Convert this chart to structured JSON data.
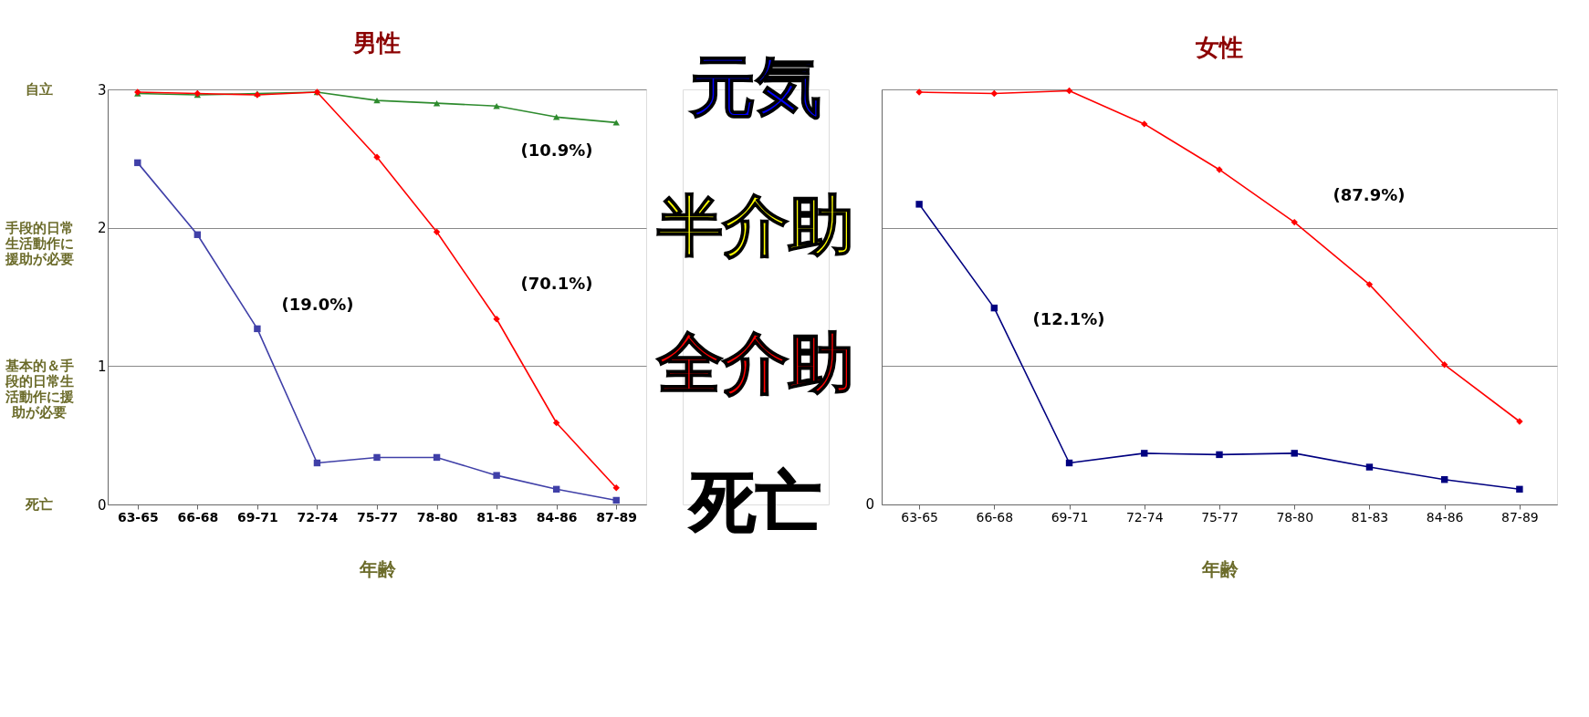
{
  "chart_data": [
    {
      "type": "line",
      "title": "男性",
      "xlabel": "年齢",
      "categories": [
        "63-65",
        "66-68",
        "69-71",
        "72-74",
        "75-77",
        "78-80",
        "81-83",
        "84-86",
        "87-89"
      ],
      "series": [
        {
          "color": "#2e8b2e",
          "marker": "triangle",
          "values": [
            2.97,
            2.96,
            2.97,
            2.98,
            2.92,
            2.9,
            2.88,
            2.8,
            2.76
          ]
        },
        {
          "color": "#ff0000",
          "marker": "diamond",
          "values": [
            2.98,
            2.97,
            2.96,
            2.98,
            2.51,
            1.97,
            1.34,
            0.59,
            0.12
          ]
        },
        {
          "color": "#4040a8",
          "marker": "square",
          "values": [
            2.47,
            1.95,
            1.27,
            0.3,
            0.34,
            0.34,
            0.21,
            0.11,
            0.03
          ]
        }
      ],
      "ylim": [
        0,
        3
      ],
      "yticks": [
        0,
        1,
        2,
        3
      ],
      "grid": "y",
      "annotations": [
        "自立",
        "手段的日常生活動作に援助が必要",
        "基本的＆手段的日常生活動作に援助が必要",
        "死亡",
        "(10.9%)",
        "(70.1%)",
        "(19.0%)"
      ]
    },
    {
      "type": "other",
      "annotations": [
        "元気",
        "半介助",
        "全介助",
        "死亡"
      ]
    },
    {
      "type": "line",
      "title": "女性",
      "xlabel": "年齢",
      "categories": [
        "63-65",
        "66-68",
        "69-71",
        "72-74",
        "75-77",
        "78-80",
        "81-83",
        "84-86",
        "87-89"
      ],
      "series": [
        {
          "color": "#ff0000",
          "marker": "diamond",
          "values": [
            2.98,
            2.97,
            2.99,
            2.75,
            2.42,
            2.04,
            1.59,
            1.01,
            0.6
          ]
        },
        {
          "color": "#000080",
          "marker": "square",
          "values": [
            2.17,
            1.42,
            0.3,
            0.37,
            0.36,
            0.37,
            0.27,
            0.18,
            0.11
          ]
        }
      ],
      "ylim": [
        0,
        3
      ],
      "yticks": [
        0,
        1,
        2,
        3
      ],
      "grid": "y",
      "tick_labels": "x",
      "annotations": [
        "(87.9%)",
        "(12.1%)",
        "0"
      ]
    }
  ]
}
